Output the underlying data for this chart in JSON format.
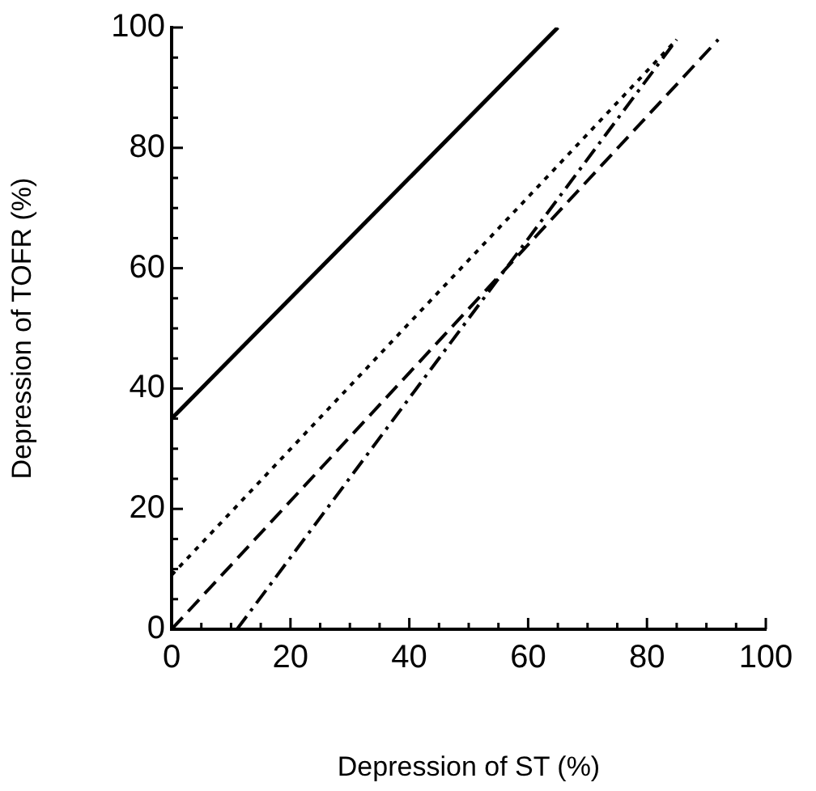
{
  "chart_data": {
    "type": "line",
    "xlabel": "Depression of ST (%)",
    "ylabel": "Depression of TOFR (%)",
    "series": [
      {
        "color": "#000000",
        "line_style": "solid",
        "x": [
          0,
          65
        ],
        "values": [
          35,
          100
        ]
      },
      {
        "color": "#000000",
        "line_style": "dotted",
        "x": [
          0,
          85
        ],
        "values": [
          9,
          98
        ]
      },
      {
        "color": "#000000",
        "line_style": "dashed",
        "x": [
          0,
          92
        ],
        "values": [
          0,
          98
        ]
      },
      {
        "color": "#000000",
        "line_style": "dashdot",
        "x": [
          11,
          85
        ],
        "values": [
          0,
          98
        ]
      }
    ],
    "xlim": [
      0,
      100
    ],
    "ylim": [
      0,
      100
    ],
    "xticks": [
      0,
      {
        "value": 5,
        "label": null
      },
      20,
      {
        "value": 15,
        "label": null
      },
      {
        "value": 10,
        "label": null
      },
      {
        "value": 25,
        "label": null
      },
      {
        "value": 30,
        "label": null
      },
      {
        "value": 35,
        "label": null
      },
      40,
      {
        "value": 45,
        "label": null
      },
      {
        "value": 50,
        "label": null
      },
      {
        "value": 55,
        "label": null
      },
      60,
      {
        "value": 65,
        "label": null
      },
      {
        "value": 70,
        "label": null
      },
      {
        "value": 75,
        "label": null
      },
      80,
      {
        "value": 85,
        "label": null
      },
      {
        "value": 90,
        "label": null
      },
      {
        "value": 95,
        "label": null
      },
      100
    ],
    "yticks": [
      0,
      {
        "value": 5,
        "label": null
      },
      {
        "value": 10,
        "label": null
      },
      {
        "value": 15,
        "label": null
      },
      20,
      {
        "value": 25,
        "label": null
      },
      {
        "value": 30,
        "label": null
      },
      {
        "value": 35,
        "label": null
      },
      40,
      {
        "value": 45,
        "label": null
      },
      {
        "value": 50,
        "label": null
      },
      {
        "value": 55,
        "label": null
      },
      60,
      {
        "value": 65,
        "label": null
      },
      {
        "value": 70,
        "label": null
      },
      {
        "value": 75,
        "label": null
      },
      80,
      {
        "value": 85,
        "label": null
      },
      {
        "value": 90,
        "label": null
      },
      {
        "value": 95,
        "label": null
      },
      100
    ],
    "grid": false,
    "legend": false,
    "marker": "none"
  }
}
